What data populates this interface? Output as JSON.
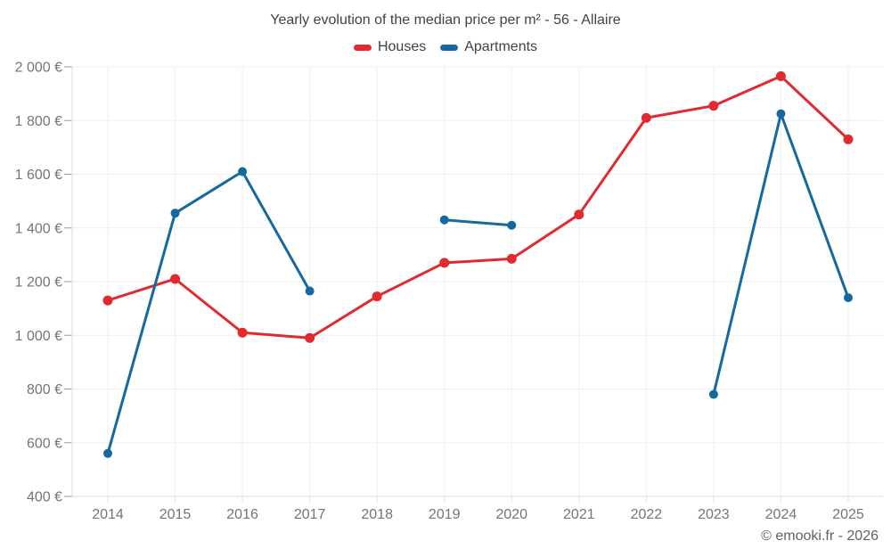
{
  "chart": {
    "title": "Yearly evolution of the median price per m² - 56 - Allaire",
    "legend_items": [
      {
        "label": "Houses",
        "color": "#e02a2f"
      },
      {
        "label": "Apartments",
        "color": "#16699e"
      }
    ],
    "watermark": "© emooki.fr - 2026"
  },
  "chart_data": {
    "type": "line",
    "title": "Yearly evolution of the median price per m² - 56 - Allaire",
    "categories": [
      "2014",
      "2015",
      "2016",
      "2017",
      "2018",
      "2019",
      "2020",
      "2021",
      "2022",
      "2023",
      "2024",
      "2025"
    ],
    "series": [
      {
        "name": "Houses",
        "color": "#e02a2f",
        "values": [
          1130,
          1210,
          1010,
          990,
          1145,
          1270,
          1285,
          1450,
          1810,
          1855,
          1965,
          1730
        ]
      },
      {
        "name": "Apartments",
        "color": "#16699e",
        "values": [
          560,
          1455,
          1610,
          1165,
          null,
          1430,
          1410,
          null,
          null,
          780,
          1825,
          1140
        ]
      }
    ],
    "xlabel": "",
    "ylabel": "",
    "ylim": [
      400,
      2000
    ],
    "ytick_step": 200,
    "ytick_labels": [
      "400 €",
      "600 €",
      "800 €",
      "1 000 €",
      "1 200 €",
      "1 400 €",
      "1 600 €",
      "1 800 €",
      "2 000 €"
    ],
    "grid": true,
    "legend_position": "top",
    "currency": "€"
  }
}
